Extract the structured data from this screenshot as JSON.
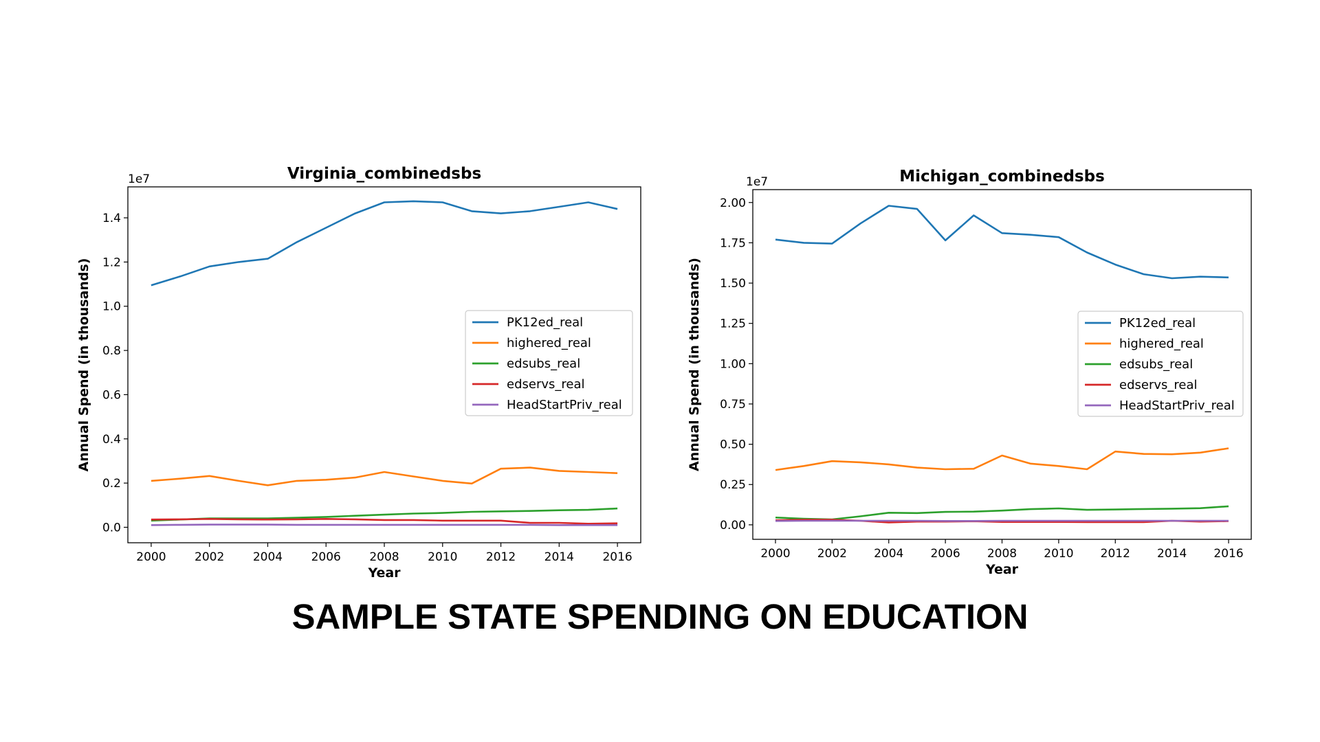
{
  "caption": "SAMPLE STATE SPENDING ON EDUCATION",
  "chart_data": [
    {
      "type": "line",
      "title": "Virginia_combinedsbs",
      "xlabel": "Year",
      "ylabel": "Annual Spend (in thousands)",
      "offset_label": "1e7",
      "x": [
        2000,
        2001,
        2002,
        2003,
        2004,
        2005,
        2006,
        2007,
        2008,
        2009,
        2010,
        2011,
        2012,
        2013,
        2014,
        2015,
        2016
      ],
      "xticks": [
        "2000",
        "2002",
        "2004",
        "2006",
        "2008",
        "2010",
        "2012",
        "2014",
        "2016"
      ],
      "xlim": [
        1999.2,
        2016.8
      ],
      "yticks": [
        "0.0",
        "0.2",
        "0.4",
        "0.6",
        "0.8",
        "1.0",
        "1.2",
        "1.4"
      ],
      "ylim": [
        -0.07,
        1.54
      ],
      "legend_position": "center-right",
      "grid": false,
      "series": [
        {
          "name": "PK12ed_real",
          "color": "#1f77b4",
          "values": [
            1.095,
            1.135,
            1.18,
            1.2,
            1.215,
            1.29,
            1.355,
            1.42,
            1.47,
            1.475,
            1.47,
            1.43,
            1.42,
            1.43,
            1.45,
            1.47,
            1.44
          ]
        },
        {
          "name": "highered_real",
          "color": "#ff7f0e",
          "values": [
            0.21,
            0.22,
            0.232,
            0.21,
            0.19,
            0.21,
            0.215,
            0.225,
            0.25,
            0.23,
            0.21,
            0.198,
            0.265,
            0.27,
            0.255,
            0.25,
            0.245
          ]
        },
        {
          "name": "edsubs_real",
          "color": "#2ca02c",
          "values": [
            0.03,
            0.035,
            0.04,
            0.04,
            0.04,
            0.043,
            0.047,
            0.052,
            0.057,
            0.062,
            0.065,
            0.07,
            0.072,
            0.074,
            0.077,
            0.079,
            0.085
          ]
        },
        {
          "name": "edservs_real",
          "color": "#d62728",
          "values": [
            0.035,
            0.036,
            0.038,
            0.036,
            0.035,
            0.036,
            0.038,
            0.036,
            0.033,
            0.033,
            0.03,
            0.03,
            0.03,
            0.02,
            0.02,
            0.016,
            0.018
          ]
        },
        {
          "name": "HeadStartPriv_real",
          "color": "#9467bd",
          "values": [
            0.01,
            0.011,
            0.012,
            0.012,
            0.012,
            0.011,
            0.011,
            0.011,
            0.011,
            0.011,
            0.011,
            0.011,
            0.011,
            0.011,
            0.01,
            0.01,
            0.01
          ]
        }
      ]
    },
    {
      "type": "line",
      "title": "Michigan_combinedsbs",
      "xlabel": "Year",
      "ylabel": "Annual Spend (in thousands)",
      "offset_label": "1e7",
      "x": [
        2000,
        2001,
        2002,
        2003,
        2004,
        2005,
        2006,
        2007,
        2008,
        2009,
        2010,
        2011,
        2012,
        2013,
        2014,
        2015,
        2016
      ],
      "xticks": [
        "2000",
        "2002",
        "2004",
        "2006",
        "2008",
        "2010",
        "2012",
        "2014",
        "2016"
      ],
      "xlim": [
        1999.2,
        2016.8
      ],
      "yticks": [
        "0.00",
        "0.25",
        "0.50",
        "0.75",
        "1.00",
        "1.25",
        "1.50",
        "1.75",
        "2.00"
      ],
      "ylim": [
        -0.09,
        2.08
      ],
      "legend_position": "center-right",
      "grid": false,
      "series": [
        {
          "name": "PK12ed_real",
          "color": "#1f77b4",
          "values": [
            1.77,
            1.75,
            1.745,
            1.87,
            1.98,
            1.96,
            1.765,
            1.92,
            1.81,
            1.8,
            1.785,
            1.69,
            1.615,
            1.555,
            1.53,
            1.54,
            1.535
          ]
        },
        {
          "name": "highered_real",
          "color": "#ff7f0e",
          "values": [
            0.34,
            0.365,
            0.395,
            0.388,
            0.375,
            0.355,
            0.345,
            0.348,
            0.43,
            0.38,
            0.365,
            0.345,
            0.455,
            0.44,
            0.438,
            0.448,
            0.475
          ]
        },
        {
          "name": "edsubs_real",
          "color": "#2ca02c",
          "values": [
            0.045,
            0.038,
            0.033,
            0.053,
            0.075,
            0.073,
            0.08,
            0.082,
            0.088,
            0.097,
            0.102,
            0.093,
            0.095,
            0.098,
            0.1,
            0.103,
            0.115
          ]
        },
        {
          "name": "edservs_real",
          "color": "#d62728",
          "values": [
            0.028,
            0.032,
            0.032,
            0.025,
            0.015,
            0.02,
            0.02,
            0.022,
            0.018,
            0.018,
            0.018,
            0.017,
            0.017,
            0.017,
            0.025,
            0.02,
            0.023
          ]
        },
        {
          "name": "HeadStartPriv_real",
          "color": "#9467bd",
          "values": [
            0.024,
            0.025,
            0.025,
            0.025,
            0.025,
            0.025,
            0.024,
            0.024,
            0.025,
            0.025,
            0.025,
            0.025,
            0.025,
            0.025,
            0.025,
            0.025,
            0.025
          ]
        }
      ]
    }
  ]
}
